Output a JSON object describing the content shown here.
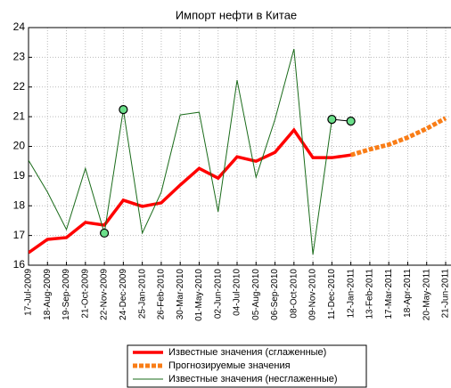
{
  "chart_data": {
    "type": "line",
    "title": "Импорт нефти в Китае",
    "categories": [
      "17-Jul-2009",
      "18-Aug-2009",
      "19-Sep-2009",
      "21-Oct-2009",
      "22-Nov-2009",
      "24-Dec-2009",
      "25-Jan-2010",
      "26-Feb-2010",
      "30-Mar-2010",
      "01-May-2010",
      "02-Jun-2010",
      "04-Jul-2010",
      "05-Aug-2010",
      "06-Sep-2010",
      "08-Oct-2010",
      "09-Nov-2010",
      "11-Dec-2010",
      "12-Jan-2011",
      "13-Feb-2011",
      "17-Mar-2011",
      "18-Apr-2011",
      "20-May-2011",
      "21-Jun-2011"
    ],
    "ylim": [
      16,
      24
    ],
    "yticks": [
      16,
      17,
      18,
      19,
      20,
      21,
      22,
      23,
      24
    ],
    "grid": true,
    "legend": "bottom",
    "series": [
      {
        "name": "Известные значения (сглаженные)",
        "color": "#ff0000",
        "width": 3.5,
        "dashed": false,
        "values": [
          16.42,
          16.87,
          16.93,
          17.44,
          17.35,
          18.19,
          17.98,
          18.1,
          18.7,
          19.26,
          18.93,
          19.65,
          19.5,
          19.8,
          20.55,
          19.62,
          19.62,
          19.71,
          null,
          null,
          null,
          null,
          null
        ]
      },
      {
        "name": "Прогнозируемые значения",
        "color": "#f97d17",
        "width": 5,
        "dashed": true,
        "values": [
          null,
          null,
          null,
          null,
          null,
          null,
          null,
          null,
          null,
          null,
          null,
          null,
          null,
          null,
          null,
          null,
          null,
          19.71,
          19.9,
          20.06,
          20.3,
          20.6,
          20.95
        ]
      },
      {
        "name": "Известные значения (несглаженные)",
        "color": "#1a6b1a",
        "width": 1,
        "dashed": false,
        "values": [
          19.53,
          18.46,
          17.2,
          19.26,
          17.08,
          21.24,
          17.08,
          18.46,
          21.06,
          21.15,
          17.8,
          22.23,
          18.96,
          20.91,
          23.28,
          16.36,
          20.91,
          null,
          null,
          null,
          null,
          null,
          null
        ]
      },
      {
        "color": "#000000",
        "width": 1,
        "dashed": false,
        "line": false,
        "marker": "#6bdf8a",
        "values": [
          null,
          null,
          null,
          null,
          17.08,
          21.24,
          null,
          null,
          null,
          null,
          null,
          null,
          null,
          null,
          null,
          null,
          null,
          null,
          null,
          null,
          null,
          null,
          null
        ]
      },
      {
        "color": "#000000",
        "width": 1,
        "dashed": false,
        "line": true,
        "marker": "#6bdf8a",
        "values": [
          null,
          null,
          null,
          null,
          null,
          null,
          null,
          null,
          null,
          null,
          null,
          null,
          null,
          null,
          null,
          null,
          20.91,
          20.85,
          null,
          null,
          null,
          null,
          null
        ]
      }
    ]
  }
}
